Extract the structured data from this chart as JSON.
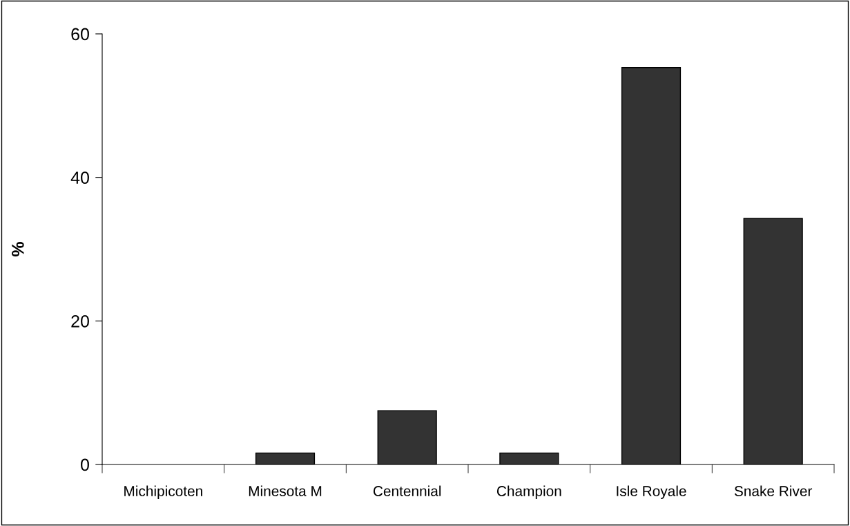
{
  "chart_data": {
    "type": "bar",
    "ylabel": "%",
    "categories": [
      "Michipicoten",
      "Minesota M",
      "Centennial",
      "Champion",
      "Isle Royale",
      "Snake River"
    ],
    "values": [
      0,
      1.6,
      7.5,
      1.6,
      55.3,
      34.3
    ],
    "color": "#333333",
    "ylim": [
      0,
      60
    ],
    "yticks": [
      0,
      20,
      40,
      60
    ],
    "grid": false
  }
}
